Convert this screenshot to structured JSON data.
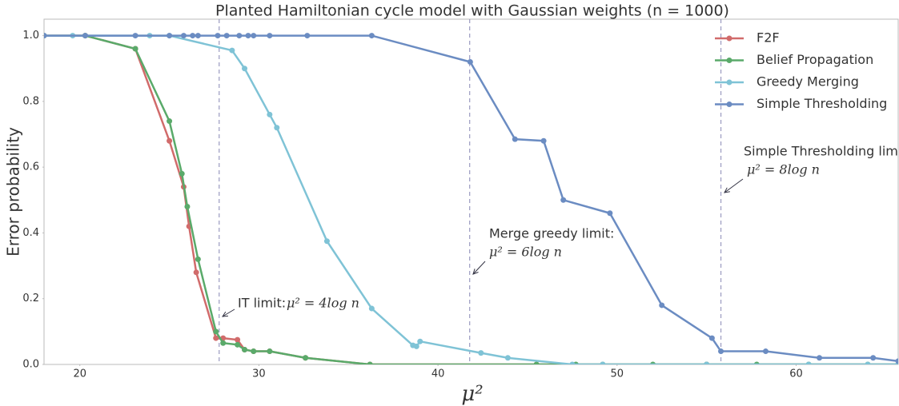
{
  "chart_data": {
    "type": "line",
    "title": "Planted Hamiltonian cycle model with Gaussian weights (n = 1000)",
    "xlabel": "μ²",
    "ylabel": "Error probability",
    "xlim": [
      18,
      65.7
    ],
    "ylim": [
      0,
      1.05
    ],
    "xticks": [
      20,
      30,
      40,
      50,
      60
    ],
    "yticks": [
      {
        "value": 0,
        "label": "0.0"
      },
      0.2,
      0.4,
      0.6,
      0.8,
      {
        "value": 1,
        "label": "1.0"
      }
    ],
    "legend": "upper right",
    "series": [
      {
        "name": "F2F",
        "color": "#d16b6b",
        "x": [
          18,
          20.3,
          23.1,
          25.0,
          25.8,
          26.1,
          26.5,
          27.6,
          28.0,
          28.8,
          29.2,
          29.7,
          30.6,
          32.6,
          36.2,
          45.5,
          55,
          65.7
        ],
        "values": [
          1.0,
          1.0,
          0.96,
          0.68,
          0.54,
          0.42,
          0.28,
          0.08,
          0.08,
          0.075,
          0.045,
          0.04,
          0.04,
          0.02,
          0.0,
          0.0,
          0.0,
          0.0
        ]
      },
      {
        "name": "Belief Propagation",
        "color": "#5aaa6a",
        "x": [
          18,
          20.3,
          23.1,
          25.0,
          25.7,
          26.0,
          26.6,
          27.6,
          28.0,
          28.8,
          29.2,
          29.7,
          30.6,
          32.6,
          36.2,
          45.5,
          47.7,
          49.2,
          52,
          55,
          57.8,
          60.7,
          64,
          65.7
        ],
        "values": [
          1.0,
          1.0,
          0.96,
          0.74,
          0.58,
          0.48,
          0.32,
          0.1,
          0.065,
          0.06,
          0.045,
          0.04,
          0.04,
          0.02,
          0.0,
          0.0,
          0.0,
          0.0,
          0.0,
          0.0,
          0.0,
          0.0,
          0.0,
          0.0
        ]
      },
      {
        "name": "Greedy Merging",
        "color": "#7fc3d6",
        "x": [
          18,
          19.6,
          23.9,
          25.0,
          28.5,
          29.2,
          30.6,
          31.0,
          33.8,
          36.3,
          38.6,
          38.8,
          39.0,
          42.4,
          43.9,
          47.5,
          49.2,
          55,
          60.7,
          64,
          65.7
        ],
        "values": [
          1.0,
          1.0,
          1.0,
          1.0,
          0.955,
          0.9,
          0.76,
          0.72,
          0.375,
          0.17,
          0.058,
          0.055,
          0.07,
          0.035,
          0.02,
          0.0,
          0.0,
          0.0,
          0.0,
          0.0,
          0.0
        ]
      },
      {
        "name": "Simple Thresholding",
        "color": "#6b8cc2",
        "x": [
          18,
          20.3,
          23.1,
          25.0,
          25.8,
          26.3,
          26.6,
          27.7,
          28.2,
          28.9,
          29.4,
          29.7,
          30.6,
          32.7,
          36.3,
          41.8,
          44.3,
          45.9,
          47.0,
          49.6,
          52.5,
          55.3,
          55.8,
          58.3,
          61.3,
          64.3,
          65.7
        ],
        "values": [
          1.0,
          1.0,
          1.0,
          1.0,
          1.0,
          1.0,
          1.0,
          1.0,
          1.0,
          1.0,
          1.0,
          1.0,
          1.0,
          1.0,
          1.0,
          0.92,
          0.685,
          0.68,
          0.5,
          0.46,
          0.18,
          0.08,
          0.04,
          0.04,
          0.02,
          0.02,
          0.01
        ]
      }
    ],
    "vlines": [
      27.78,
      41.77,
      55.8
    ],
    "annotations": [
      {
        "lines": [
          "IT limit:",
          "μ² = 4log n"
        ]
      },
      {
        "lines": [
          "Merge greedy limit:",
          "μ² = 6log n"
        ]
      },
      {
        "lines": [
          "Simple Thresholding limit:",
          "μ² = 8log n"
        ]
      }
    ]
  }
}
